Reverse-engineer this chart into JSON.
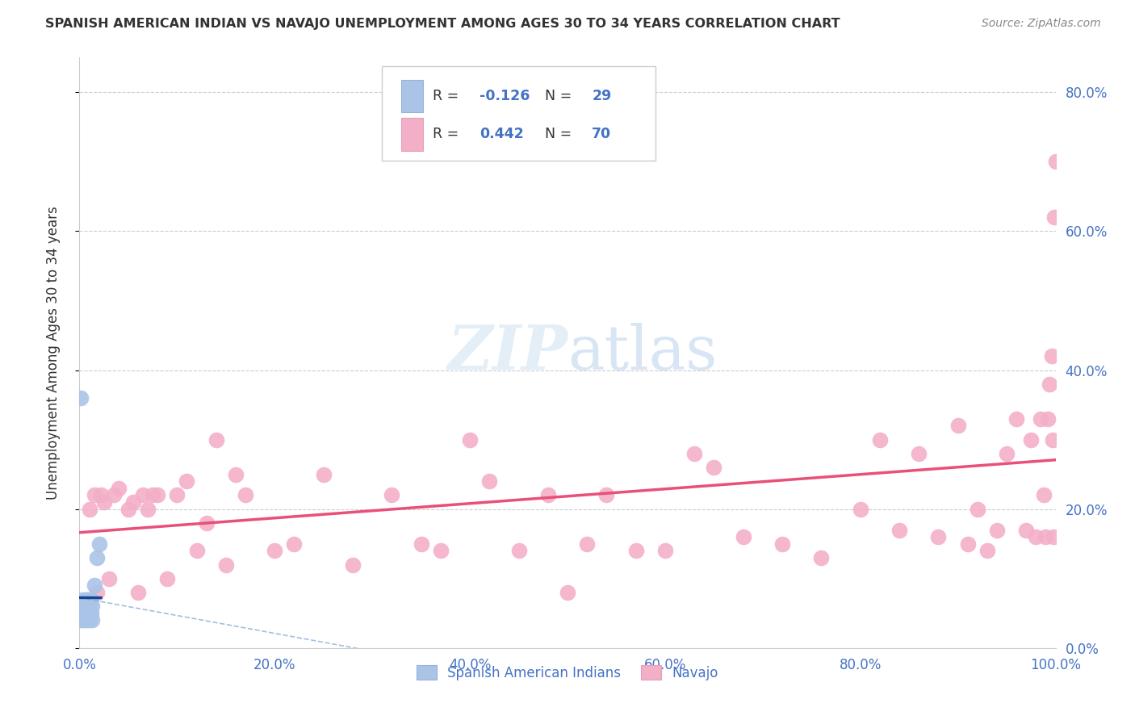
{
  "title": "SPANISH AMERICAN INDIAN VS NAVAJO UNEMPLOYMENT AMONG AGES 30 TO 34 YEARS CORRELATION CHART",
  "source": "Source: ZipAtlas.com",
  "ylabel": "Unemployment Among Ages 30 to 34 years",
  "blue_R": -0.126,
  "blue_N": 29,
  "pink_R": 0.442,
  "pink_N": 70,
  "blue_color": "#aac4e8",
  "pink_color": "#f4afc8",
  "blue_line_color": "#1a4494",
  "pink_line_color": "#e8507a",
  "blue_dashed_color": "#8ab0d8",
  "legend_label_blue": "Spanish American Indians",
  "legend_label_pink": "Navajo",
  "blue_points_x": [
    0.001,
    0.002,
    0.002,
    0.003,
    0.004,
    0.004,
    0.005,
    0.005,
    0.006,
    0.006,
    0.006,
    0.007,
    0.007,
    0.008,
    0.008,
    0.009,
    0.009,
    0.01,
    0.01,
    0.011,
    0.011,
    0.012,
    0.012,
    0.013,
    0.013,
    0.015,
    0.018,
    0.02,
    0.001
  ],
  "blue_points_y": [
    0.04,
    0.05,
    0.06,
    0.07,
    0.04,
    0.05,
    0.05,
    0.06,
    0.04,
    0.06,
    0.07,
    0.05,
    0.07,
    0.04,
    0.06,
    0.05,
    0.07,
    0.04,
    0.06,
    0.05,
    0.07,
    0.05,
    0.07,
    0.04,
    0.06,
    0.09,
    0.13,
    0.15,
    0.36
  ],
  "pink_points_x": [
    0.01,
    0.015,
    0.018,
    0.022,
    0.025,
    0.03,
    0.035,
    0.04,
    0.05,
    0.055,
    0.06,
    0.065,
    0.07,
    0.075,
    0.08,
    0.09,
    0.1,
    0.11,
    0.12,
    0.13,
    0.14,
    0.15,
    0.16,
    0.17,
    0.2,
    0.22,
    0.25,
    0.28,
    0.32,
    0.35,
    0.37,
    0.4,
    0.42,
    0.45,
    0.48,
    0.5,
    0.52,
    0.54,
    0.57,
    0.6,
    0.63,
    0.65,
    0.68,
    0.72,
    0.76,
    0.8,
    0.82,
    0.84,
    0.86,
    0.88,
    0.9,
    0.91,
    0.92,
    0.93,
    0.94,
    0.95,
    0.96,
    0.97,
    0.975,
    0.98,
    0.985,
    0.988,
    0.99,
    0.992,
    0.994,
    0.996,
    0.997,
    0.998,
    0.999,
    1.0
  ],
  "pink_points_y": [
    0.2,
    0.22,
    0.08,
    0.22,
    0.21,
    0.1,
    0.22,
    0.23,
    0.2,
    0.21,
    0.08,
    0.22,
    0.2,
    0.22,
    0.22,
    0.1,
    0.22,
    0.24,
    0.14,
    0.18,
    0.3,
    0.12,
    0.25,
    0.22,
    0.14,
    0.15,
    0.25,
    0.12,
    0.22,
    0.15,
    0.14,
    0.3,
    0.24,
    0.14,
    0.22,
    0.08,
    0.15,
    0.22,
    0.14,
    0.14,
    0.28,
    0.26,
    0.16,
    0.15,
    0.13,
    0.2,
    0.3,
    0.17,
    0.28,
    0.16,
    0.32,
    0.15,
    0.2,
    0.14,
    0.17,
    0.28,
    0.33,
    0.17,
    0.3,
    0.16,
    0.33,
    0.22,
    0.16,
    0.33,
    0.38,
    0.42,
    0.3,
    0.16,
    0.62,
    0.7
  ],
  "xlim": [
    0.0,
    1.0
  ],
  "ylim": [
    0.0,
    0.85
  ],
  "ytick_vals": [
    0.0,
    0.2,
    0.4,
    0.6,
    0.8
  ],
  "ytick_labels": [
    "0.0%",
    "20.0%",
    "40.0%",
    "60.0%",
    "80.0%"
  ],
  "xtick_vals": [
    0.0,
    0.2,
    0.4,
    0.6,
    0.8,
    1.0
  ],
  "xtick_labels": [
    "0.0%",
    "20.0%",
    "40.0%",
    "60.0%",
    "80.0%",
    "100.0%"
  ],
  "background_color": "#ffffff",
  "grid_color": "#cccccc",
  "tick_color": "#4472c4",
  "title_color": "#333333",
  "source_color": "#888888"
}
